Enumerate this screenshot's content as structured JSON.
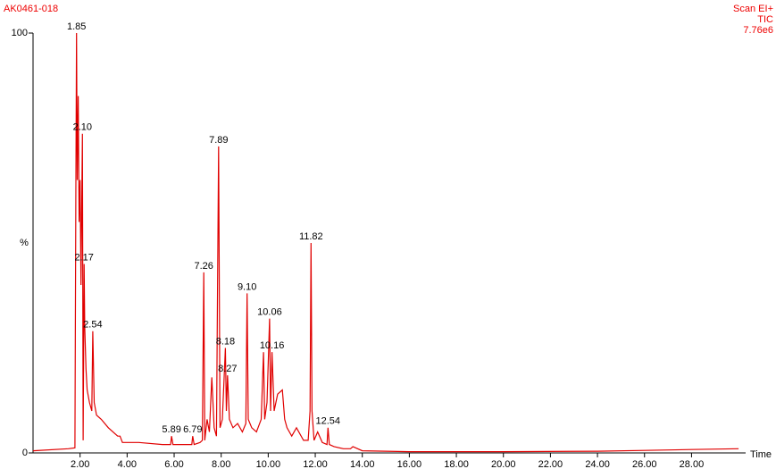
{
  "chart_data": {
    "type": "line",
    "title": "AK0461-018",
    "scan": "Scan EI+",
    "mode": "TIC",
    "intensity": "7.76e6",
    "y_label": "%",
    "x_label": "Time",
    "color": "#e00000",
    "xlim": [
      0,
      30.3
    ],
    "ylim": [
      0,
      100
    ],
    "yticks": [
      0,
      100
    ],
    "xticks": [
      {
        "value": 2,
        "label": "2.00"
      },
      {
        "value": 4,
        "label": "4.00"
      },
      {
        "value": 6,
        "label": "6.00"
      },
      {
        "value": 8,
        "label": "8.00"
      },
      {
        "value": 10,
        "label": "10.00"
      },
      {
        "value": 12,
        "label": "12.00"
      },
      {
        "value": 14,
        "label": "14.00"
      },
      {
        "value": 16,
        "label": "16.00"
      },
      {
        "value": 18,
        "label": "18.00"
      },
      {
        "value": 20,
        "label": "20.00"
      },
      {
        "value": 22,
        "label": "22.00"
      },
      {
        "value": 24,
        "label": "24.00"
      },
      {
        "value": 26,
        "label": "26.00"
      },
      {
        "value": 28,
        "label": "28.00"
      }
    ],
    "x": [
      0,
      1.5,
      1.78,
      1.82,
      1.85,
      1.88,
      1.92,
      1.96,
      2.0,
      2.04,
      2.1,
      2.13,
      2.17,
      2.2,
      2.25,
      2.3,
      2.4,
      2.5,
      2.54,
      2.6,
      2.7,
      2.9,
      3.2,
      3.6,
      3.7,
      3.8,
      4.5,
      5.5,
      5.85,
      5.89,
      5.95,
      6.5,
      6.75,
      6.79,
      6.85,
      7.1,
      7.2,
      7.26,
      7.3,
      7.4,
      7.5,
      7.6,
      7.7,
      7.8,
      7.89,
      7.95,
      8.05,
      8.18,
      8.22,
      8.27,
      8.35,
      8.5,
      8.7,
      8.9,
      9.05,
      9.1,
      9.15,
      9.3,
      9.5,
      9.7,
      9.8,
      9.85,
      9.95,
      10.06,
      10.1,
      10.16,
      10.25,
      10.4,
      10.6,
      10.7,
      10.8,
      11.0,
      11.2,
      11.5,
      11.7,
      11.78,
      11.82,
      11.86,
      11.95,
      12.1,
      12.3,
      12.5,
      12.54,
      12.6,
      12.8,
      13.2,
      13.5,
      13.6,
      14,
      16,
      20,
      24,
      26,
      28,
      30
    ],
    "y": [
      0.5,
      1,
      1.2,
      60,
      100,
      65,
      85,
      55,
      65,
      40,
      76,
      3,
      45,
      30,
      20,
      15,
      12,
      10,
      29,
      12,
      9,
      8,
      6,
      4,
      4,
      2.5,
      2.5,
      2,
      2,
      4,
      2,
      2,
      2,
      4,
      2,
      2.5,
      3,
      43,
      3,
      8,
      5,
      18,
      6,
      4,
      73,
      6,
      8,
      25,
      10,
      18.5,
      8,
      6,
      7,
      5,
      7,
      38,
      8,
      6,
      5,
      8,
      24,
      8,
      12,
      32,
      10,
      24,
      10,
      14,
      15,
      8,
      6,
      4,
      6,
      3,
      3,
      10,
      50,
      10,
      3,
      5,
      2.5,
      2,
      6,
      2,
      1.5,
      1,
      1,
      1.5,
      0.5,
      0.3,
      0.3,
      0.4,
      0.6,
      0.8,
      1
    ],
    "peaks": {
      "x": [
        1.85,
        2.1,
        2.17,
        2.54,
        5.89,
        6.79,
        7.26,
        7.89,
        8.18,
        8.27,
        9.1,
        10.06,
        10.16,
        11.82,
        12.54
      ],
      "y": [
        100,
        76,
        45,
        29,
        4,
        4,
        43,
        73,
        25,
        18.5,
        38,
        32,
        24,
        50,
        6
      ],
      "labels": [
        "1.85",
        "2.10",
        "2.17",
        "2.54",
        "5.89",
        "6.79",
        "7.26",
        "7.89",
        "8.18",
        "8.27",
        "9.10",
        "10.06",
        "10.16",
        "11.82",
        "12.54"
      ]
    }
  }
}
